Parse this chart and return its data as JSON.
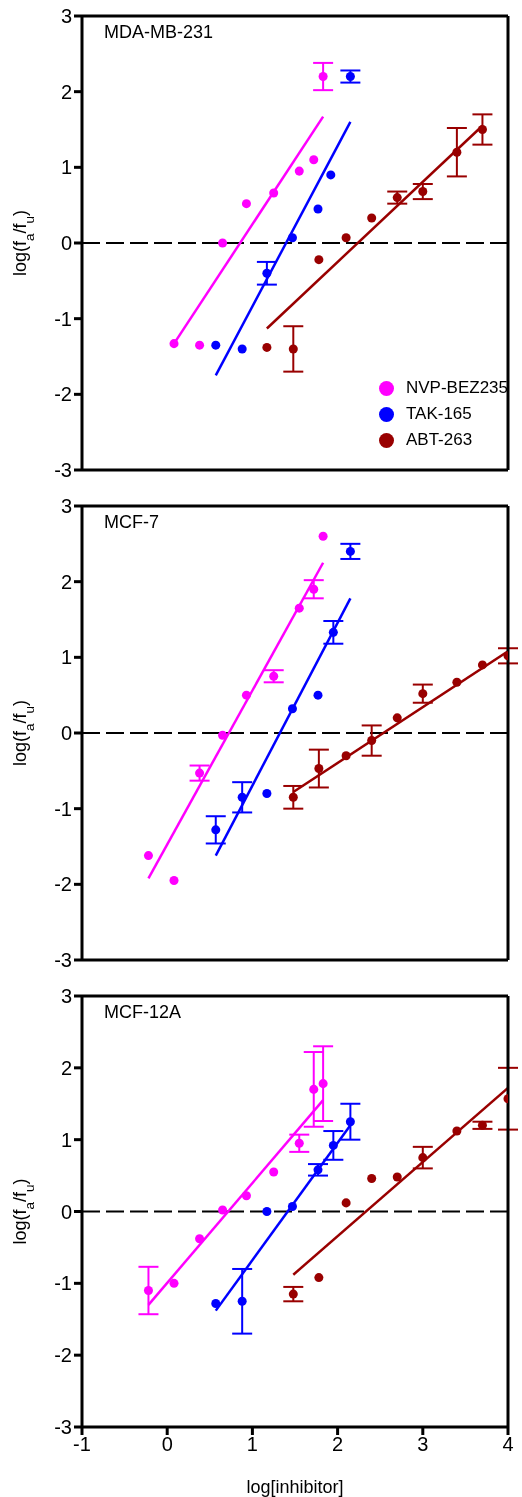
{
  "chart_data": [
    {
      "type": "scatter",
      "title": "MDA-MB-231",
      "ylabel": "log(f$_{a}$/f$_{u}$)",
      "xlim": [
        -1,
        4
      ],
      "xticks": [
        -1,
        0,
        1,
        2,
        3,
        4
      ],
      "ylim": [
        -3,
        3
      ],
      "yticks": [
        -3,
        -2,
        -1,
        0,
        1,
        2,
        3
      ],
      "tick_labels": "y",
      "legend": "bottom right",
      "marker": "circle",
      "grid": false,
      "ref_lines": [
        {
          "axis": "y",
          "value": 0,
          "line_style": "dashed",
          "color": "#000000"
        }
      ],
      "series": [
        {
          "name": "NVP-BEZ235",
          "color": "#ff00ff",
          "x": [
            0.08,
            0.38,
            0.65,
            0.93,
            1.25,
            1.55,
            1.72,
            1.83
          ],
          "values": [
            -1.33,
            -1.35,
            0,
            0.52,
            0.66,
            0.95,
            1.1,
            2.2
          ],
          "errors": [
            null,
            null,
            null,
            null,
            null,
            null,
            null,
            0.18
          ]
        },
        {
          "name": "TAK-165",
          "color": "#0000ff",
          "x": [
            0.57,
            0.88,
            1.17,
            1.47,
            1.77,
            1.92,
            2.15
          ],
          "values": [
            -1.35,
            -1.4,
            -0.4,
            0.07,
            0.45,
            0.9,
            2.2
          ],
          "errors": [
            null,
            null,
            0.15,
            null,
            null,
            null,
            0.08
          ]
        },
        {
          "name": "ABT-263",
          "color": "#990000",
          "x": [
            1.17,
            1.48,
            1.78,
            2.1,
            2.4,
            2.7,
            3.0,
            3.4,
            3.7
          ],
          "values": [
            -1.38,
            -1.4,
            -0.22,
            0.07,
            0.33,
            0.6,
            0.68,
            1.2,
            1.5
          ],
          "errors": [
            null,
            0.3,
            null,
            null,
            null,
            0.08,
            0.1,
            0.32,
            0.2
          ]
        },
        {
          "type": "line",
          "color": "#ff00ff",
          "marker": "none",
          "x": [
            0.08,
            1.83
          ],
          "values": [
            -1.33,
            1.67
          ]
        },
        {
          "type": "line",
          "color": "#0000ff",
          "marker": "none",
          "x": [
            0.57,
            2.15
          ],
          "values": [
            -1.75,
            1.6
          ]
        },
        {
          "type": "line",
          "color": "#990000",
          "marker": "none",
          "x": [
            1.17,
            3.7
          ],
          "values": [
            -1.13,
            1.55
          ]
        }
      ]
    },
    {
      "type": "scatter",
      "title": "MCF-7",
      "ylabel": "log(f$_{a}$/f$_{u}$)",
      "xlim": [
        -1,
        4
      ],
      "xticks": [
        -1,
        0,
        1,
        2,
        3,
        4
      ],
      "ylim": [
        -3,
        3
      ],
      "yticks": [
        -3,
        -2,
        -1,
        0,
        1,
        2,
        3
      ],
      "tick_labels": "y",
      "marker": "circle",
      "grid": false,
      "ref_lines": [
        {
          "axis": "y",
          "value": 0,
          "line_style": "dashed",
          "color": "#000000"
        }
      ],
      "series": [
        {
          "color": "#ff00ff",
          "x": [
            -0.22,
            0.08,
            0.38,
            0.65,
            0.93,
            1.25,
            1.55,
            1.72,
            1.83
          ],
          "values": [
            -1.62,
            -1.95,
            -0.53,
            -0.03,
            0.5,
            0.75,
            1.65,
            1.9,
            2.6
          ],
          "errors": [
            null,
            null,
            0.1,
            null,
            null,
            0.08,
            null,
            0.12,
            null
          ]
        },
        {
          "color": "#0000ff",
          "x": [
            0.57,
            0.88,
            1.17,
            1.47,
            1.77,
            1.95,
            2.15
          ],
          "values": [
            -1.28,
            -0.85,
            -0.8,
            0.32,
            0.5,
            1.33,
            2.4
          ],
          "errors": [
            0.18,
            0.2,
            null,
            null,
            null,
            0.15,
            0.1
          ]
        },
        {
          "color": "#990000",
          "x": [
            1.48,
            1.78,
            2.1,
            2.4,
            2.7,
            3.0,
            3.4,
            3.7,
            4.0
          ],
          "values": [
            -0.85,
            -0.47,
            -0.3,
            -0.1,
            0.2,
            0.52,
            0.67,
            0.9,
            1.02
          ],
          "errors": [
            0.15,
            0.25,
            null,
            0.2,
            null,
            0.12,
            null,
            null,
            0.1
          ]
        },
        {
          "type": "line",
          "color": "#ff00ff",
          "marker": "none",
          "x": [
            -0.22,
            1.83
          ],
          "values": [
            -1.92,
            2.25
          ]
        },
        {
          "type": "line",
          "color": "#0000ff",
          "marker": "none",
          "x": [
            0.57,
            2.15
          ],
          "values": [
            -1.62,
            1.78
          ]
        },
        {
          "type": "line",
          "color": "#990000",
          "marker": "none",
          "x": [
            1.48,
            4.0
          ],
          "values": [
            -0.78,
            1.08
          ]
        }
      ]
    },
    {
      "type": "scatter",
      "title": "MCF-12A",
      "xlabel": "log[inhibitor]",
      "ylabel": "log(f$_{a}$/f$_{u}$)",
      "xlim": [
        -1,
        4
      ],
      "xticks": [
        -1,
        0,
        1,
        2,
        3,
        4
      ],
      "ylim": [
        -3,
        3
      ],
      "yticks": [
        -3,
        -2,
        -1,
        0,
        1,
        2,
        3
      ],
      "marker": "circle",
      "grid": false,
      "ref_lines": [
        {
          "axis": "y",
          "value": 0,
          "line_style": "dashed",
          "color": "#000000"
        }
      ],
      "series": [
        {
          "color": "#ff00ff",
          "x": [
            -0.22,
            0.08,
            0.38,
            0.65,
            0.93,
            1.25,
            1.55,
            1.72,
            1.83
          ],
          "values": [
            -1.1,
            -1.0,
            -0.38,
            0.02,
            0.22,
            0.55,
            0.95,
            1.7,
            1.78
          ],
          "errors": [
            0.33,
            null,
            null,
            null,
            null,
            null,
            0.12,
            0.52,
            0.52
          ]
        },
        {
          "color": "#0000ff",
          "x": [
            0.57,
            0.88,
            1.17,
            1.47,
            1.77,
            1.95,
            2.15
          ],
          "values": [
            -1.28,
            -1.25,
            0,
            0.07,
            0.58,
            0.92,
            1.25
          ],
          "errors": [
            null,
            0.45,
            null,
            null,
            0.08,
            0.2,
            0.25
          ]
        },
        {
          "color": "#990000",
          "x": [
            1.48,
            1.78,
            2.1,
            2.4,
            2.7,
            3.0,
            3.4,
            3.7,
            4.0
          ],
          "values": [
            -1.15,
            -0.92,
            0.12,
            0.46,
            0.48,
            0.75,
            1.12,
            1.2,
            1.57
          ],
          "errors": [
            0.1,
            null,
            null,
            null,
            null,
            0.15,
            null,
            0.05,
            0.43
          ]
        },
        {
          "type": "line",
          "color": "#ff00ff",
          "marker": "none",
          "x": [
            -0.22,
            1.83
          ],
          "values": [
            -1.3,
            1.55
          ]
        },
        {
          "type": "line",
          "color": "#0000ff",
          "marker": "none",
          "x": [
            0.57,
            2.15
          ],
          "values": [
            -1.38,
            1.2
          ]
        },
        {
          "type": "line",
          "color": "#990000",
          "marker": "none",
          "x": [
            1.48,
            4.0
          ],
          "values": [
            -0.88,
            1.72
          ]
        }
      ]
    }
  ]
}
